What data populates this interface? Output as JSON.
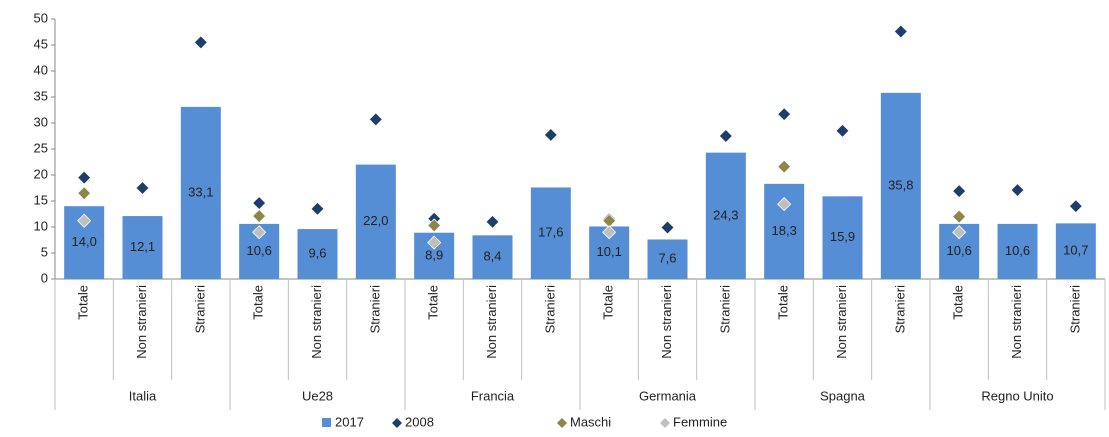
{
  "chart_data": {
    "type": "bar",
    "groups": [
      "Italia",
      "Ue28",
      "Francia",
      "Germania",
      "Spagna",
      "Regno Unito"
    ],
    "categories": [
      "Totale",
      "Non stranieri",
      "Stranieri",
      "Totale",
      "Non stranieri",
      "Stranieri",
      "Totale",
      "Non stranieri",
      "Stranieri",
      "Totale",
      "Non stranieri",
      "Stranieri",
      "Totale",
      "Non stranieri",
      "Stranieri",
      "Totale",
      "Non stranieri",
      "Stranieri"
    ],
    "series": [
      {
        "name": "2017",
        "kind": "bar",
        "color": "#558ed5",
        "values": [
          14.0,
          12.1,
          33.1,
          10.6,
          9.6,
          22.0,
          8.9,
          8.4,
          17.6,
          10.1,
          7.6,
          24.3,
          18.3,
          15.9,
          35.8,
          10.6,
          10.6,
          10.7
        ],
        "value_labels": [
          "14,0",
          "12,1",
          "33,1",
          "10,6",
          "9,6",
          "22,0",
          "8,9",
          "8,4",
          "17,6",
          "10,1",
          "7,6",
          "24,3",
          "18,3",
          "15,9",
          "35,8",
          "10,6",
          "10,6",
          "10,7"
        ]
      },
      {
        "name": "2008",
        "kind": "marker",
        "color": "#1f3d6b",
        "values": [
          19.5,
          17.5,
          45.5,
          14.6,
          13.5,
          30.7,
          11.6,
          11.0,
          27.7,
          11.5,
          9.9,
          27.5,
          31.7,
          28.5,
          47.6,
          16.9,
          17.1,
          14.0
        ]
      },
      {
        "name": "Maschi",
        "kind": "marker",
        "color": "#8c8648",
        "values": [
          16.5,
          null,
          null,
          12.1,
          null,
          null,
          10.3,
          null,
          null,
          11.2,
          null,
          null,
          21.6,
          null,
          null,
          12.0,
          null,
          null
        ]
      },
      {
        "name": "Femmine",
        "kind": "marker",
        "color": "#bfbfbf",
        "values": [
          11.2,
          null,
          null,
          9.0,
          null,
          null,
          7.0,
          null,
          null,
          9.0,
          null,
          null,
          14.4,
          null,
          null,
          9.0,
          null,
          null
        ]
      }
    ],
    "ylim": [
      0,
      50
    ],
    "yticks": [
      0,
      5,
      10,
      15,
      20,
      25,
      30,
      35,
      40,
      45,
      50
    ],
    "grid": false
  }
}
